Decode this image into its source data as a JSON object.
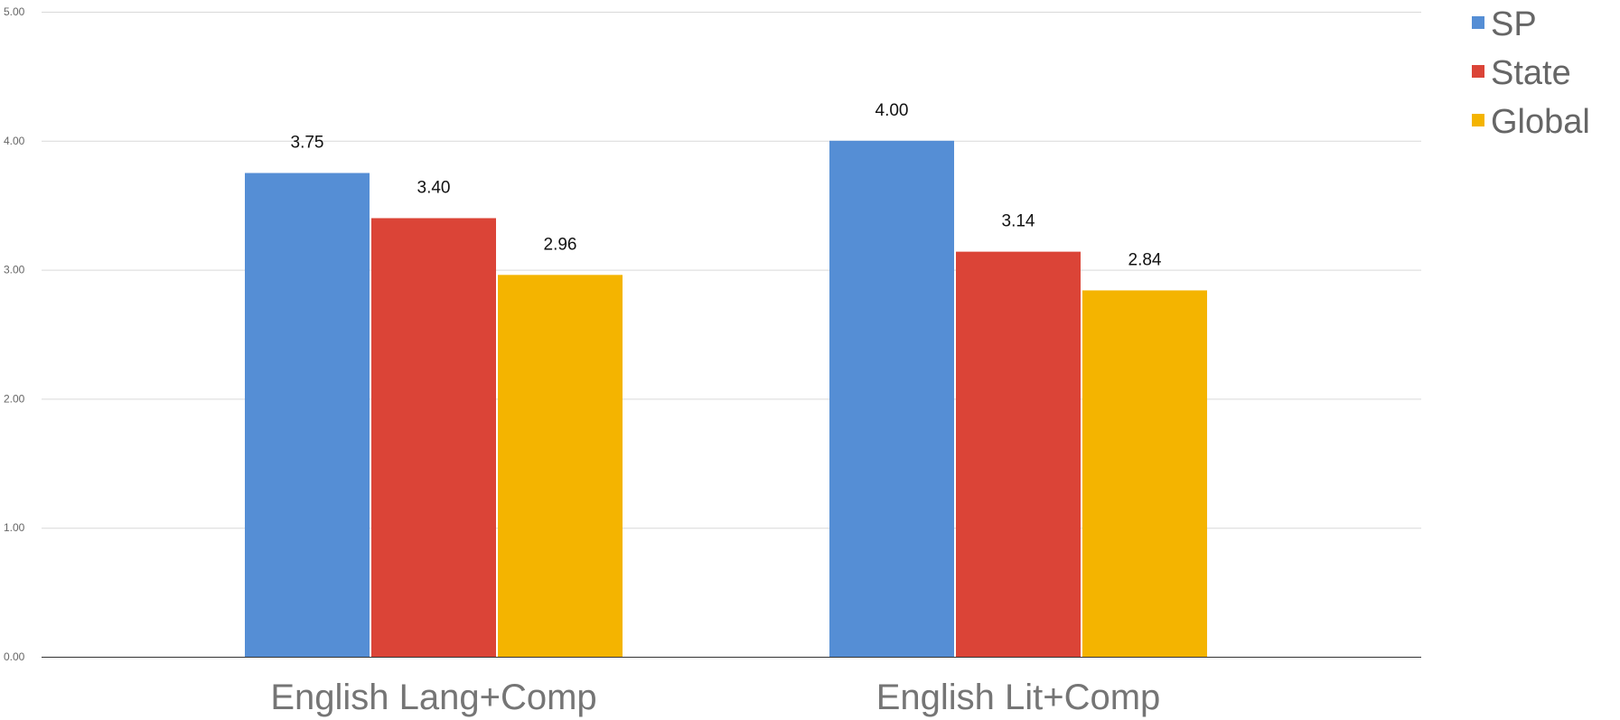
{
  "chart_data": {
    "type": "bar",
    "categories": [
      "English Lang+Comp",
      "English Lit+Comp"
    ],
    "series": [
      {
        "name": "SP",
        "color": "#558ed5",
        "values": [
          3.75,
          4.0
        ]
      },
      {
        "name": "State",
        "color": "#db4437",
        "values": [
          3.4,
          3.14
        ]
      },
      {
        "name": "Global",
        "color": "#f4b400",
        "values": [
          2.96,
          2.84
        ]
      }
    ],
    "ylim": [
      0,
      5
    ],
    "yticks": [
      0,
      1,
      2,
      3,
      4,
      5
    ],
    "ytick_labels": [
      "0.00",
      "1.00",
      "2.00",
      "3.00",
      "4.00",
      "5.00"
    ],
    "data_labels": [
      [
        "3.75",
        "4.00"
      ],
      [
        "3.40",
        "3.14"
      ],
      [
        "2.96",
        "2.84"
      ]
    ],
    "grid": true,
    "legend_position": "top-right",
    "title": "",
    "xlabel": "",
    "ylabel": ""
  }
}
